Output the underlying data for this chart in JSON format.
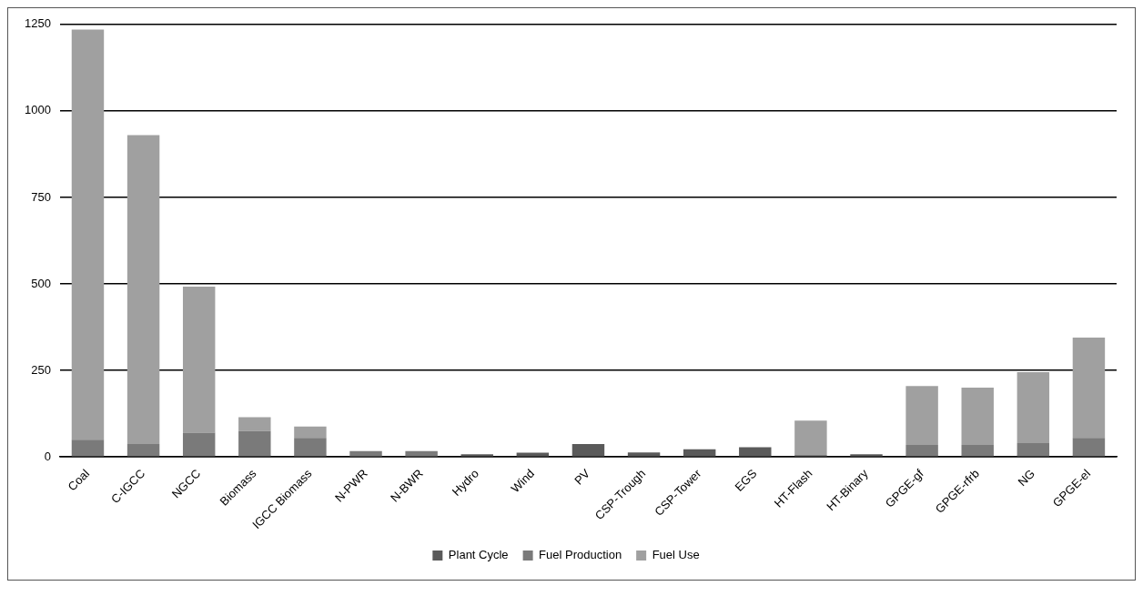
{
  "chart_data": {
    "type": "bar",
    "stacked": true,
    "categories": [
      "Coal",
      "C-IGCC",
      "NGCC",
      "Biomass",
      "IGCC Biomass",
      "N-PWR",
      "N-BWR",
      "Hydro",
      "Wind",
      "PV",
      "CSP-Trough",
      "CSP-Tower",
      "EGS",
      "HT-Flash",
      "HT-Binary",
      "GPGE-gf",
      "GPGE-rfrb",
      "NG",
      "GPGE-el"
    ],
    "series": [
      {
        "name": "Plant Cycle",
        "color": "#5a5a5a",
        "values": [
          5,
          5,
          5,
          5,
          5,
          2,
          2,
          8,
          12,
          37,
          13,
          22,
          28,
          5,
          8,
          5,
          5,
          5,
          5
        ]
      },
      {
        "name": "Fuel Production",
        "color": "#7a7a7a",
        "values": [
          45,
          32,
          65,
          70,
          50,
          15,
          15,
          0,
          0,
          0,
          0,
          0,
          0,
          0,
          0,
          30,
          30,
          35,
          50
        ]
      },
      {
        "name": "Fuel Use",
        "color": "#a0a0a0",
        "values": [
          1185,
          893,
          422,
          40,
          33,
          0,
          0,
          0,
          0,
          0,
          0,
          0,
          0,
          100,
          0,
          170,
          165,
          205,
          290
        ]
      }
    ],
    "ylim": [
      0,
      1250
    ],
    "yticks": [
      0,
      250,
      500,
      750,
      1000,
      1250
    ],
    "grid": "y",
    "legend": "bottom"
  }
}
